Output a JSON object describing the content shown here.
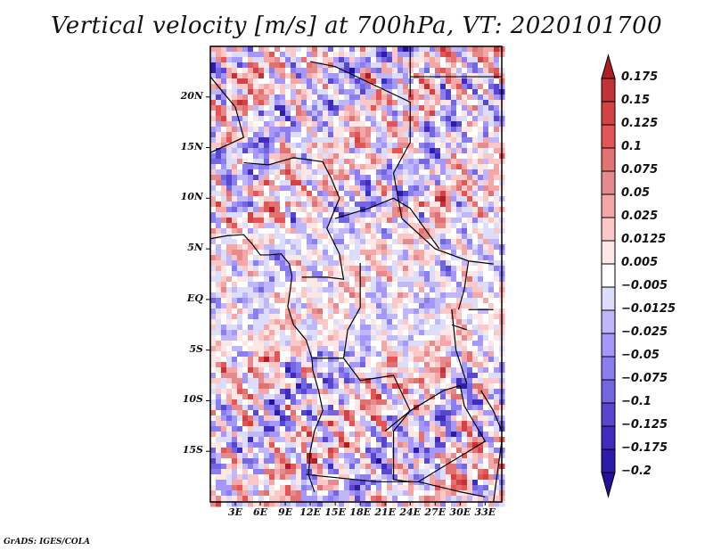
{
  "title": "Vertical velocity [m/s] at 700hPa, VT: 2020101700",
  "credit": "GrADS: IGES/COLA",
  "map": {
    "variable": "Vertical velocity",
    "units": "m/s",
    "level": "700hPa",
    "valid_time": "2020101700",
    "lon_range": [
      0,
      35
    ],
    "lat_range": [
      -20,
      25
    ],
    "lat_labels": [
      {
        "lat": 20,
        "text": "20N"
      },
      {
        "lat": 15,
        "text": "15N"
      },
      {
        "lat": 10,
        "text": "10N"
      },
      {
        "lat": 5,
        "text": "5N"
      },
      {
        "lat": 0,
        "text": "EQ"
      },
      {
        "lat": -5,
        "text": "5S"
      },
      {
        "lat": -10,
        "text": "10S"
      },
      {
        "lat": -15,
        "text": "15S"
      }
    ],
    "lon_labels": [
      {
        "lon": 3,
        "text": "3E"
      },
      {
        "lon": 6,
        "text": "6E"
      },
      {
        "lon": 9,
        "text": "9E"
      },
      {
        "lon": 12,
        "text": "12E"
      },
      {
        "lon": 15,
        "text": "15E"
      },
      {
        "lon": 18,
        "text": "18E"
      },
      {
        "lon": 21,
        "text": "21E"
      },
      {
        "lon": 24,
        "text": "24E"
      },
      {
        "lon": 27,
        "text": "27E"
      },
      {
        "lon": 30,
        "text": "30E"
      },
      {
        "lon": 33,
        "text": "33E"
      }
    ]
  },
  "colorbar": {
    "labels": [
      "0.175",
      "0.15",
      "0.125",
      "0.1",
      "0.075",
      "0.05",
      "0.025",
      "0.0125",
      "0.005",
      "−0.005",
      "−0.0125",
      "−0.025",
      "−0.05",
      "−0.075",
      "−0.1",
      "−0.125",
      "−0.175",
      "−0.2"
    ],
    "colors": [
      "#ad1f24",
      "#c13337",
      "#d54244",
      "#e45656",
      "#e27272",
      "#e58a8d",
      "#f5a7a8",
      "#fbc8c8",
      "#fde6e6",
      "#ffffff",
      "#dcdcfb",
      "#c0b7fb",
      "#a597fb",
      "#8b7ef0",
      "#7366e0",
      "#5846d1",
      "#3f2bbd",
      "#2d1ca9",
      "#23119a"
    ]
  }
}
